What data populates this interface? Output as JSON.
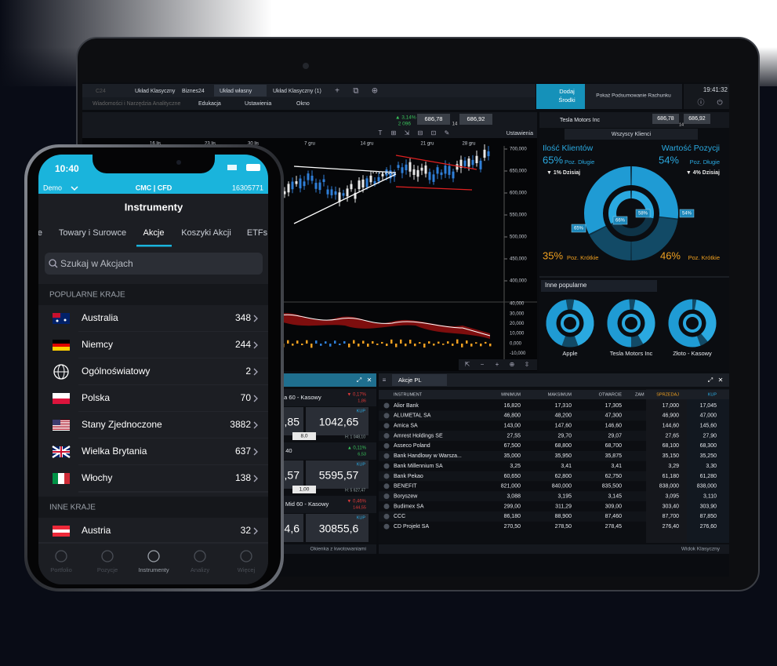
{
  "laptop": {
    "tabs": [
      "C24",
      "Układ Klasyczny",
      "Biznes24",
      "Układ własny",
      "Układ Klasyczny (1)"
    ],
    "menu": [
      "Wiadomości i Narzędzia Analityczne",
      "Edukacja",
      "Ustawienia",
      "Okno"
    ],
    "deposit_button": [
      "Dodaj",
      "Środki"
    ],
    "summary_link": "Pokaż Podsumowanie Rachunku",
    "clock": "19:41:32",
    "chart": {
      "change": "▲ 3,14%",
      "volume": "2 096",
      "sell": "686,78",
      "buy": "686,92",
      "spread": "14",
      "settings": "Ustawienia",
      "dates": [
        "16 lis",
        "23 lis",
        "30 lis",
        "7 gru",
        "14 gru",
        "21 gru",
        "28 gru"
      ],
      "price_ticks": [
        "700,000",
        "650,000",
        "600,000",
        "550,000",
        "500,000",
        "450,000",
        "400,000"
      ],
      "indicator_ticks": [
        "40,000",
        "30,000",
        "20,000",
        "10,000",
        "0,000",
        "-10,000",
        "-20,000"
      ]
    },
    "sentiment": {
      "instrument": "Tesla Motors Inc",
      "sell": "686,78",
      "buy": "686,92",
      "spread": "14",
      "filter": "Wszyscy Klienci",
      "clients": {
        "title": "Ilość Klientów",
        "long": {
          "value": 65,
          "label": "65%"
        },
        "long_label": "Poz. Długie",
        "today": "▼ 1% Dzisiaj",
        "short": {
          "value": 35,
          "label": "35%"
        },
        "short_label": "Poz. Krótkie",
        "inner": {
          "value": 66,
          "label": "66%"
        }
      },
      "positions": {
        "title": "Wartość Pozycji",
        "long": {
          "value": 54,
          "label": "54%"
        },
        "long_label": "Poz. Długie",
        "today": "▼ 4% Dzisiaj",
        "short": {
          "value": 46,
          "label": "46%"
        },
        "short_label": "Poz. Krótkie",
        "inner": {
          "value": 58,
          "label": "58%"
        }
      },
      "popular_title": "Inne popularne",
      "popular": [
        "Apple",
        "Tesla Motors Inc",
        "Złoto - Kasowy"
      ]
    },
    "quotes": {
      "footer": "Okienka z kwotowaniami",
      "tiles": [
        {
          "name": "da 60 - Kasowy",
          "change": "▼ 0,17%",
          "change_points": "1,86",
          "sell": ",85",
          "buy": "1042,65",
          "buy_label": "KUP",
          "spread": "8,0",
          "high": "H: 1 048,10"
        },
        {
          "name": "e 40",
          "change": "▲ 0,11%",
          "change_points": "6,53",
          "sell": "4,57",
          "buy": "5595,57",
          "buy_label": "KUP",
          "spread": "1,00",
          "high": "H: 5 627,47"
        },
        {
          "name": "y Mid 60 - Kasowy",
          "change": "▼ 0,46%",
          "change_points": "144,55",
          "sell": "4,6",
          "buy": "30855,6",
          "buy_label": "KUP"
        }
      ]
    },
    "table": {
      "tab": "Akcje PL",
      "columns": [
        "INSTRUMENT",
        "MINIMUM",
        "MAKSIMUM",
        "OTWARCIE",
        "ZAM",
        "SPRZEDAJ",
        "KUP"
      ],
      "rows": [
        [
          "Alior Bank",
          "16,820",
          "17,310",
          "17,305",
          "17,000",
          "17,045"
        ],
        [
          "ALUMETAL SA",
          "46,800",
          "48,200",
          "47,300",
          "46,900",
          "47,000"
        ],
        [
          "Amica SA",
          "143,00",
          "147,60",
          "146,60",
          "144,60",
          "145,60"
        ],
        [
          "Amrest Holdings SE",
          "27,55",
          "29,70",
          "29,07",
          "27,65",
          "27,90"
        ],
        [
          "Asseco Poland",
          "67,500",
          "68,800",
          "68,700",
          "68,100",
          "68,300"
        ],
        [
          "Bank Handlowy w Warsza...",
          "35,000",
          "35,950",
          "35,875",
          "35,150",
          "35,250"
        ],
        [
          "Bank Millennium SA",
          "3,25",
          "3,41",
          "3,41",
          "3,29",
          "3,30"
        ],
        [
          "Bank Pekao",
          "60,650",
          "62,800",
          "62,750",
          "61,180",
          "61,280"
        ],
        [
          "BENEFIT",
          "821,000",
          "840,000",
          "835,500",
          "838,000",
          "838,000"
        ],
        [
          "Boryszew",
          "3,088",
          "3,195",
          "3,145",
          "3,095",
          "3,110"
        ],
        [
          "Budimex SA",
          "299,00",
          "311,29",
          "309,00",
          "303,40",
          "303,90"
        ],
        [
          "CCC",
          "86,180",
          "88,900",
          "87,460",
          "87,700",
          "87,850"
        ],
        [
          "CD Projekt SA",
          "270,50",
          "278,50",
          "278,45",
          "276,40",
          "276,60"
        ]
      ],
      "footer": "Widok Klasyczny"
    }
  },
  "phone": {
    "time": "10:40",
    "account_mode": "Demo",
    "logo": "CMC | CFD",
    "account_number": "16305771",
    "title": "Instrumenty",
    "tabs": [
      "Towary i Surowce",
      "Akcje",
      "Koszyki Akcji",
      "ETFs"
    ],
    "search_placeholder": "Szukaj w Akcjach",
    "sections": [
      {
        "title": "POPULARNE KRAJE",
        "rows": [
          {
            "name": "Australia",
            "count": "348"
          },
          {
            "name": "Niemcy",
            "count": "244"
          },
          {
            "name": "Ogólnoświatowy",
            "count": "2"
          },
          {
            "name": "Polska",
            "count": "70"
          },
          {
            "name": "Stany Zjednoczone",
            "count": "3882"
          },
          {
            "name": "Wielka Brytania",
            "count": "637"
          },
          {
            "name": "Włochy",
            "count": "138"
          }
        ]
      },
      {
        "title": "INNE KRAJE",
        "rows": [
          {
            "name": "Austria",
            "count": "32"
          }
        ]
      }
    ],
    "nav": [
      "Portfolio",
      "Pozycje",
      "Instrumenty",
      "Analizy",
      "Więcej"
    ]
  }
}
